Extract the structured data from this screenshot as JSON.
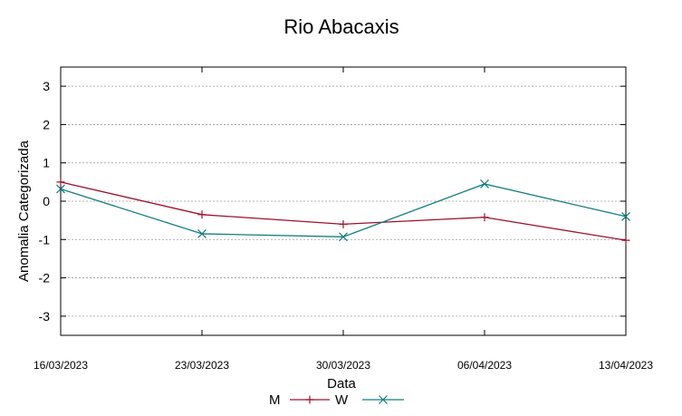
{
  "chart_data": {
    "type": "line",
    "title": "Rio Abacaxis",
    "xlabel": "Data",
    "ylabel": "Anomalia Categorizada",
    "categories": [
      "16/03/2023",
      "23/03/2023",
      "30/03/2023",
      "06/04/2023",
      "13/04/2023"
    ],
    "yticks": [
      3,
      2,
      1,
      0,
      -1,
      -2,
      -3
    ],
    "ylim": [
      -3.5,
      3.5
    ],
    "grid": "horizontal dashed",
    "legend_position": "bottom-center",
    "series": [
      {
        "name": "M",
        "values": [
          0.5,
          -0.35,
          -0.6,
          -0.42,
          -1.02
        ],
        "color": "#a0102a",
        "marker": "plus"
      },
      {
        "name": "W",
        "values": [
          0.32,
          -0.85,
          -0.93,
          0.45,
          -0.4
        ],
        "color": "#127d7e",
        "marker": "x"
      }
    ]
  }
}
